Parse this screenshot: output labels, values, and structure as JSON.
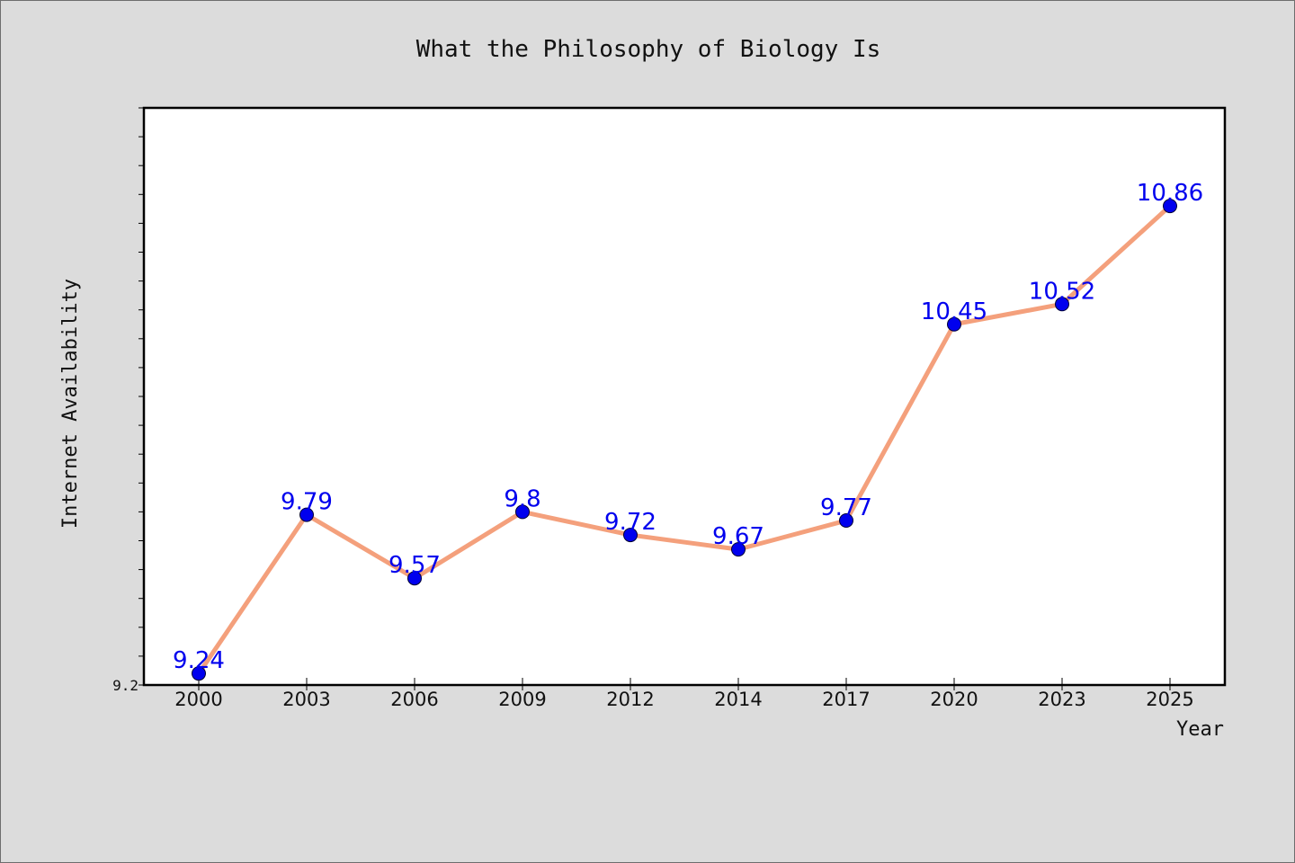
{
  "chart_data": {
    "type": "line",
    "title": "What the Philosophy of Biology Is",
    "xlabel": "Year",
    "ylabel": "Internet Availability",
    "categories": [
      "2000",
      "2003",
      "2006",
      "2009",
      "2012",
      "2014",
      "2017",
      "2020",
      "2023",
      "2025"
    ],
    "series": [
      {
        "values": [
          9.24,
          9.79,
          9.57,
          9.8,
          9.72,
          9.67,
          9.77,
          10.45,
          10.52,
          10.86
        ]
      }
    ],
    "data_labels": [
      "9.24",
      "9.79",
      "9.57",
      "9.8",
      "9.72",
      "9.67",
      "9.77",
      "10.45",
      "10.52",
      "10.86"
    ],
    "ylim": [
      9.2,
      11.2
    ],
    "y_tick_labels": [
      "9.2"
    ],
    "grid": false,
    "line_color": "#f4a07c",
    "marker_color": "#0000ee",
    "label_color": "#0000ee",
    "plot_background": "#ffffff",
    "figure_background": "#dcdcdc"
  }
}
